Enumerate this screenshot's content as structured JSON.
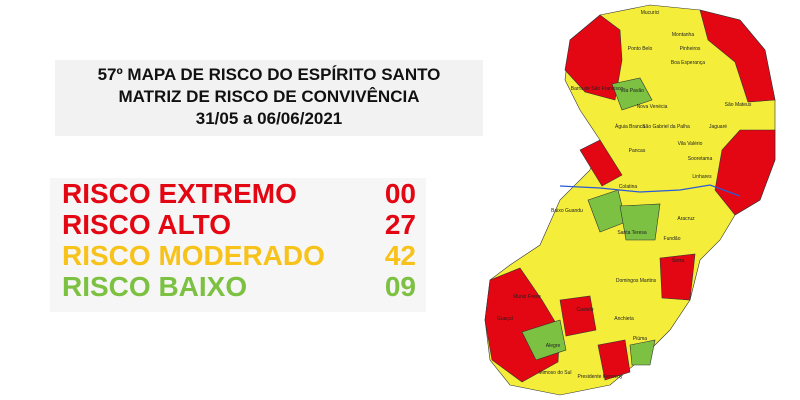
{
  "header": {
    "lines": [
      "57º MAPA DE RISCO DO ESPÍRITO SANTO",
      "MATRIZ DE RISCO DE CONVIVÊNCIA",
      "31/05 a 06/06/2021"
    ]
  },
  "legend": [
    {
      "label": "RISCO EXTREMO",
      "count": "00",
      "color": "#e30613"
    },
    {
      "label": "RISCO ALTO",
      "count": "27",
      "color": "#e30613"
    },
    {
      "label": "RISCO MODERADO",
      "count": "42",
      "color": "#f7c21a"
    },
    {
      "label": "RISCO BAIXO",
      "count": "09",
      "color": "#7dc142"
    }
  ],
  "map": {
    "municipalities": [
      "Mucurici",
      "Montanha",
      "Ponto Belo",
      "Pinheiros",
      "Boa Esperança",
      "Barra de São Francisco",
      "Vila Pavão",
      "Nova Venécia",
      "São Mateus",
      "Jaguaré",
      "Águia Branca",
      "São Gabriel da Palha",
      "Vila Valério",
      "Pancas",
      "Sooretama",
      "Linhares",
      "Colatina",
      "Baixo Guandu",
      "Aracruz",
      "Fundão",
      "Serra",
      "Santa Teresa",
      "Domingos Martins",
      "Castelo",
      "Muniz Freire",
      "Guaçuí",
      "Alegre",
      "Anchieta",
      "Piúma",
      "Presidente Kennedy",
      "Mimoso do Sul"
    ]
  }
}
